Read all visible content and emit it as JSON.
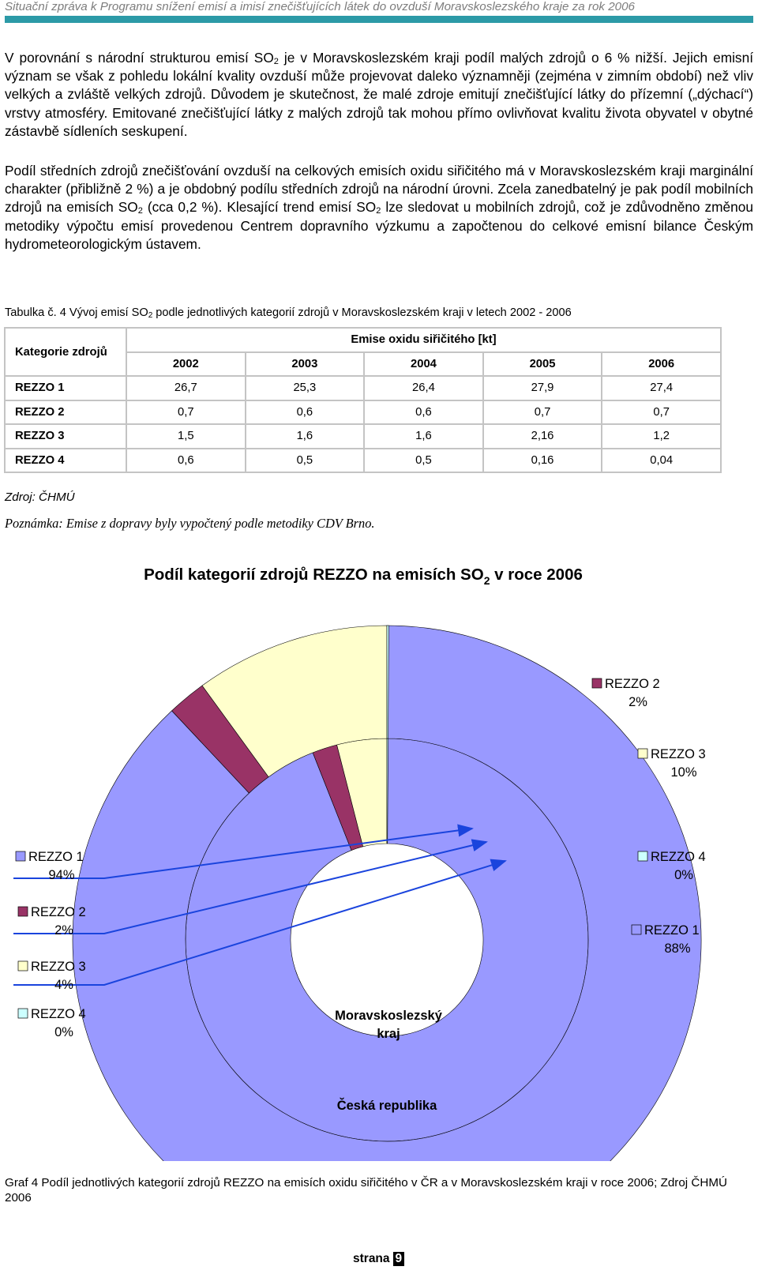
{
  "header": {
    "title": "Situační zpráva k Programu snížení emisí a imisí znečišťujících látek do ovzduší Moravskoslezského kraje za rok 2006"
  },
  "body": {
    "p1": [
      "V porovnání s národní strukturou emisí SO",
      "2",
      " je v Moravskoslezském kraji podíl malých zdrojů o 6 % nižší. Jejich emisní význam se však z pohledu lokální kvality ovzduší může projevovat daleko významněji (zejména v zimním období) než vliv velkých a zvláště velkých zdrojů. Důvodem je skutečnost, že malé zdroje emitují znečišťující látky do přízemní („dýchací“) vrstvy atmosféry. Emitované znečišťující látky z malých zdrojů tak mohou přímo ovlivňovat kvalitu života obyvatel v obytné zástavbě sídleních seskupení."
    ],
    "p2": [
      "Podíl středních zdrojů znečišťování ovzduší na celkových emisích oxidu siřičitého má v Moravskoslezském kraji marginální charakter (přibližně 2 %) a je obdobný podílu středních zdrojů na národní úrovni. Zcela zanedbatelný je pak podíl mobilních zdrojů na emisích SO",
      "2",
      " (cca 0,2 %). Klesající trend emisí SO",
      "2",
      " lze sledovat u mobilních zdrojů, což je zdůvodněno změnou metodiky výpočtu emisí provedenou Centrem dopravního výzkumu a započtenou do celkové emisní bilance Českým hydrometeorologickým ústavem."
    ]
  },
  "table_caption": {
    "prefix": "Tabulka č.  4 Vývoj emisí SO",
    "sub": "2",
    "suffix": " podle jednotlivých kategorií zdrojů v Moravskoslezském kraji v letech 2002 - 2006"
  },
  "table": {
    "category_header": "Kategorie zdrojů",
    "group_header": "Emise oxidu siřičitého [kt]",
    "years": [
      "2002",
      "2003",
      "2004",
      "2005",
      "2006"
    ],
    "rows": [
      {
        "label": "REZZO 1",
        "values": [
          "26,7",
          "25,3",
          "26,4",
          "27,9",
          "27,4"
        ]
      },
      {
        "label": "REZZO 2",
        "values": [
          "0,7",
          "0,6",
          "0,6",
          "0,7",
          "0,7"
        ]
      },
      {
        "label": "REZZO 3",
        "values": [
          "1,5",
          "1,6",
          "1,6",
          "2,16",
          "1,2"
        ]
      },
      {
        "label": "REZZO 4",
        "values": [
          "0,6",
          "0,5",
          "0,5",
          "0,16",
          "0,04"
        ]
      }
    ]
  },
  "source": "Zdroj: ČHMÚ",
  "note": "Poznámka: Emise z dopravy byly vypočtený podle metodiky CDV Brno.",
  "chart_data": {
    "type": "pie",
    "variant": "donut",
    "title": "Podíl kategorií zdrojů REZZO na emisích SO",
    "title_sub": "2",
    "title_suffix": " v roce 2006",
    "inner_label": [
      "Moravskoslezský",
      "kraj"
    ],
    "outer_label": "Česká republika",
    "colors": {
      "REZZO 1": "#9999ff",
      "REZZO 2": "#993366",
      "REZZO 3": "#ffffcc",
      "REZZO 4": "#ccffff"
    },
    "series": [
      {
        "name": "Moravskoslezský kraj",
        "ring": "inner",
        "categories": [
          "REZZO 1",
          "REZZO 2",
          "REZZO 3",
          "REZZO 4"
        ],
        "values": [
          94,
          2,
          4,
          0
        ],
        "labels": [
          "94%",
          "2%",
          "4%",
          "0%"
        ]
      },
      {
        "name": "Česká republika",
        "ring": "outer",
        "categories": [
          "REZZO 1",
          "REZZO 2",
          "REZZO 3",
          "REZZO 4"
        ],
        "values": [
          88,
          2,
          10,
          0
        ],
        "labels": [
          "88%",
          "2%",
          "10%",
          "0%"
        ]
      }
    ]
  },
  "graf_caption": "Graf 4 Podíl jednotlivých kategorií zdrojů REZZO na emisích oxidu siřičitého v ČR a v Moravskoslezském kraji v roce 2006; Zdroj ČHMÚ 2006",
  "page": {
    "prefix": "strana",
    "number": "9"
  }
}
